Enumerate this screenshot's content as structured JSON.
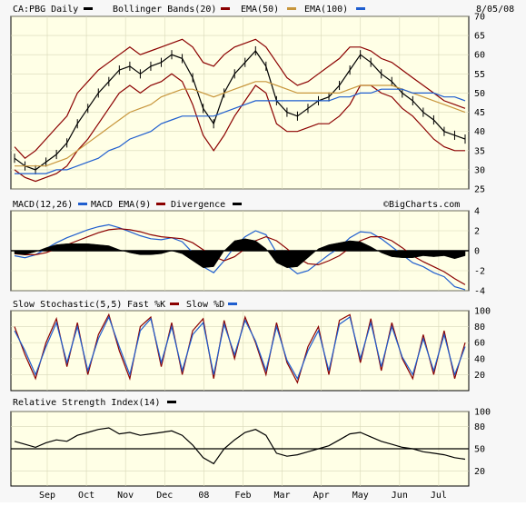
{
  "header": {
    "symbol_label": "CA:PBG Daily",
    "bbands_label": "Bollinger Bands(20)",
    "ema50_label": "EMA(50)",
    "ema100_label": "EMA(100)",
    "date": "8/05/08"
  },
  "colors": {
    "price": "#000000",
    "bollinger": "#8b0000",
    "ema50": "#c8963c",
    "ema100": "#1f5ecf",
    "macd": "#1f5ecf",
    "signal": "#8b0000",
    "divergence": "#000000",
    "fastk": "#8b0000",
    "slowd": "#1f5ecf",
    "rsi": "#000000",
    "plot_bg": "#ffffe6"
  },
  "macd_panel": {
    "macd_label": "MACD(12,26)",
    "ema_label": "MACD EMA(9)",
    "div_label": "Divergence",
    "watermark": "©BigCharts.com"
  },
  "stoch_panel": {
    "title": "Slow Stochastic(5,5)",
    "fastk_label": "Fast %K",
    "slowd_label": "Slow %D"
  },
  "rsi_panel": {
    "title": "Relative Strength Index(14)"
  },
  "x_axis": {
    "labels": [
      "Sep",
      "Oct",
      "Nov",
      "Dec",
      "08",
      "Feb",
      "Mar",
      "Apr",
      "May",
      "Jun",
      "Jul"
    ]
  },
  "chart_data": [
    {
      "type": "line",
      "name": "price",
      "title": "CA:PBG Daily",
      "x_labels": [
        "Sep",
        "Oct",
        "Nov",
        "Dec",
        "08",
        "Feb",
        "Mar",
        "Apr",
        "May",
        "Jun",
        "Jul"
      ],
      "ylim": [
        25,
        70
      ],
      "yticks": [
        25,
        30,
        35,
        40,
        45,
        50,
        55,
        60,
        65,
        70
      ],
      "series": [
        {
          "name": "CA:PBG Daily",
          "values": [
            33,
            31,
            30,
            32,
            34,
            37,
            42,
            46,
            50,
            53,
            56,
            57,
            55,
            57,
            58,
            60,
            59,
            54,
            46,
            42,
            50,
            55,
            58,
            61,
            57,
            48,
            45,
            44,
            46,
            48,
            49,
            52,
            56,
            60,
            58,
            55,
            53,
            50,
            48,
            45,
            43,
            40,
            39,
            38
          ]
        },
        {
          "name": "Bollinger Bands(20) upper",
          "values": [
            36,
            33,
            35,
            38,
            41,
            44,
            50,
            53,
            56,
            58,
            60,
            62,
            60,
            61,
            62,
            63,
            64,
            62,
            58,
            57,
            60,
            62,
            63,
            64,
            62,
            58,
            54,
            52,
            53,
            55,
            57,
            59,
            62,
            62,
            61,
            59,
            58,
            56,
            54,
            52,
            50,
            48,
            47,
            46
          ]
        },
        {
          "name": "Bollinger Bands(20) lower",
          "values": [
            30,
            28,
            27,
            28,
            29,
            31,
            35,
            38,
            42,
            46,
            50,
            52,
            50,
            52,
            53,
            55,
            53,
            47,
            39,
            35,
            39,
            44,
            48,
            52,
            50,
            42,
            40,
            40,
            41,
            42,
            42,
            44,
            47,
            52,
            52,
            50,
            49,
            46,
            44,
            41,
            38,
            36,
            35,
            35
          ]
        },
        {
          "name": "EMA(50)",
          "values": [
            31,
            31,
            31,
            31,
            32,
            33,
            35,
            37,
            39,
            41,
            43,
            45,
            46,
            47,
            49,
            50,
            51,
            51,
            50,
            49,
            50,
            51,
            52,
            53,
            53,
            52,
            51,
            50,
            50,
            50,
            50,
            50,
            51,
            52,
            52,
            52,
            52,
            51,
            50,
            49,
            48,
            47,
            46,
            45
          ]
        },
        {
          "name": "EMA(100)",
          "values": [
            29,
            29,
            29,
            29,
            30,
            30,
            31,
            32,
            33,
            35,
            36,
            38,
            39,
            40,
            42,
            43,
            44,
            44,
            44,
            44,
            45,
            46,
            47,
            48,
            48,
            48,
            48,
            48,
            48,
            48,
            48,
            49,
            49,
            50,
            50,
            51,
            51,
            51,
            50,
            50,
            50,
            49,
            49,
            48
          ]
        }
      ]
    },
    {
      "type": "line",
      "name": "macd",
      "ylim": [
        -4,
        4
      ],
      "yticks": [
        -4,
        -2,
        0,
        2,
        4
      ],
      "series": [
        {
          "name": "MACD(12,26)",
          "values": [
            -0.5,
            -0.7,
            -0.4,
            0.2,
            0.8,
            1.3,
            1.7,
            2.1,
            2.4,
            2.6,
            2.3,
            1.9,
            1.5,
            1.2,
            1.1,
            1.3,
            0.9,
            -0.2,
            -1.6,
            -2.2,
            -1.0,
            0.4,
            1.4,
            2.0,
            1.6,
            -0.2,
            -1.5,
            -2.3,
            -2.0,
            -1.2,
            -0.4,
            0.3,
            1.3,
            1.9,
            1.8,
            1.2,
            0.4,
            -0.4,
            -1.2,
            -1.6,
            -2.2,
            -2.6,
            -3.6,
            -3.9
          ]
        },
        {
          "name": "MACD EMA(9)",
          "values": [
            -0.3,
            -0.4,
            -0.4,
            -0.2,
            0.2,
            0.6,
            1.0,
            1.4,
            1.8,
            2.1,
            2.2,
            2.1,
            1.9,
            1.6,
            1.4,
            1.3,
            1.2,
            0.8,
            0.1,
            -0.6,
            -1.0,
            -0.6,
            0.2,
            1.0,
            1.4,
            1.0,
            0.2,
            -0.7,
            -1.3,
            -1.4,
            -1.0,
            -0.5,
            0.3,
            1.0,
            1.4,
            1.4,
            1.0,
            0.3,
            -0.5,
            -1.1,
            -1.6,
            -2.1,
            -2.8,
            -3.4
          ]
        },
        {
          "name": "Divergence",
          "values": [
            -0.3,
            -0.4,
            -0.1,
            0.3,
            0.6,
            0.7,
            0.7,
            0.7,
            0.6,
            0.5,
            0.1,
            -0.2,
            -0.4,
            -0.4,
            -0.3,
            0.0,
            -0.3,
            -1.0,
            -1.7,
            -1.6,
            0.0,
            1.0,
            1.2,
            1.0,
            0.2,
            -1.2,
            -1.7,
            -1.6,
            -0.7,
            0.2,
            0.6,
            0.8,
            1.0,
            0.9,
            0.4,
            -0.2,
            -0.6,
            -0.7,
            -0.7,
            -0.5,
            -0.6,
            -0.5,
            -0.8,
            -0.5
          ]
        }
      ]
    },
    {
      "type": "line",
      "name": "stochastic",
      "title": "Slow Stochastic(5,5)",
      "ylim": [
        0,
        100
      ],
      "yticks": [
        20,
        40,
        60,
        80,
        100
      ],
      "series": [
        {
          "name": "Fast %K",
          "values": [
            80,
            45,
            15,
            60,
            90,
            30,
            85,
            20,
            70,
            95,
            50,
            15,
            80,
            92,
            30,
            85,
            20,
            75,
            90,
            15,
            88,
            40,
            92,
            60,
            20,
            85,
            35,
            10,
            55,
            80,
            20,
            88,
            95,
            35,
            90,
            25,
            85,
            40,
            15,
            70,
            20,
            75,
            15,
            60
          ]
        },
        {
          "name": "Slow %D",
          "values": [
            75,
            50,
            20,
            55,
            85,
            35,
            80,
            25,
            65,
            92,
            55,
            20,
            75,
            90,
            35,
            80,
            25,
            70,
            85,
            20,
            83,
            45,
            88,
            62,
            25,
            80,
            38,
            15,
            50,
            75,
            25,
            83,
            92,
            40,
            85,
            30,
            80,
            42,
            20,
            65,
            25,
            70,
            20,
            55
          ]
        }
      ]
    },
    {
      "type": "line",
      "name": "rsi",
      "title": "Relative Strength Index(14)",
      "ylim": [
        0,
        100
      ],
      "yticks": [
        20,
        50,
        80,
        100
      ],
      "series": [
        {
          "name": "Relative Strength Index(14)",
          "values": [
            60,
            56,
            52,
            58,
            62,
            60,
            68,
            72,
            76,
            78,
            70,
            72,
            68,
            70,
            72,
            74,
            68,
            55,
            38,
            30,
            50,
            62,
            72,
            76,
            68,
            44,
            40,
            42,
            46,
            50,
            54,
            62,
            70,
            72,
            66,
            60,
            56,
            52,
            50,
            46,
            44,
            42,
            38,
            36
          ]
        }
      ]
    }
  ]
}
